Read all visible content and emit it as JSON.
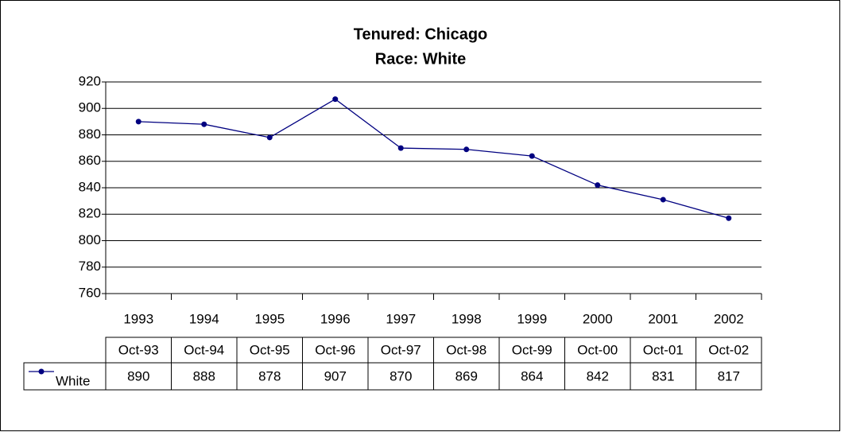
{
  "chart_data": {
    "type": "line",
    "title": [
      "Tenured: Chicago",
      "Race: White"
    ],
    "categories": [
      "1993",
      "1994",
      "1995",
      "1996",
      "1997",
      "1998",
      "1999",
      "2000",
      "2001",
      "2002"
    ],
    "table_headers": [
      "Oct-93",
      "Oct-94",
      "Oct-95",
      "Oct-96",
      "Oct-97",
      "Oct-98",
      "Oct-99",
      "Oct-00",
      "Oct-01",
      "Oct-02"
    ],
    "series": [
      {
        "name": "White",
        "color": "#000080",
        "values": [
          890,
          888,
          878,
          907,
          870,
          869,
          864,
          842,
          831,
          817
        ]
      }
    ],
    "ylim": [
      760,
      920
    ],
    "yticks": [
      760,
      780,
      800,
      820,
      840,
      860,
      880,
      900,
      920
    ],
    "grid": true
  }
}
